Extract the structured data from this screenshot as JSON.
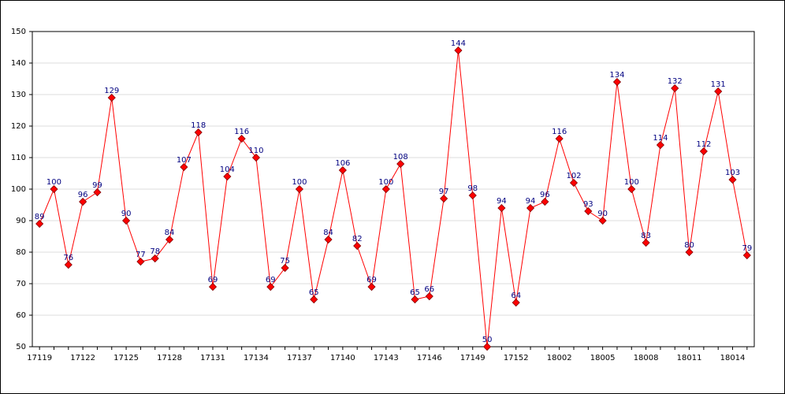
{
  "chart_data": {
    "type": "line",
    "categories": [
      "17119",
      null,
      null,
      "17122",
      null,
      null,
      "17125",
      null,
      null,
      "17128",
      null,
      null,
      "17131",
      null,
      null,
      "17134",
      null,
      null,
      "17137",
      null,
      null,
      "17140",
      null,
      null,
      "17143",
      null,
      null,
      "17146",
      null,
      null,
      "17149",
      null,
      null,
      "17152",
      null,
      null,
      "18002",
      null,
      null,
      "18005",
      null,
      null,
      "18008",
      null,
      null,
      "18011",
      null,
      null,
      "18014",
      null
    ],
    "values": [
      89,
      100,
      76,
      96,
      99,
      129,
      90,
      77,
      78,
      84,
      107,
      118,
      69,
      104,
      116,
      110,
      69,
      75,
      100,
      65,
      84,
      106,
      82,
      69,
      100,
      108,
      65,
      66,
      97,
      144,
      98,
      50,
      94,
      64,
      94,
      96,
      116,
      102,
      93,
      90,
      134,
      100,
      83,
      114,
      132,
      80,
      112,
      131,
      103,
      79
    ],
    "color": "#ff0000",
    "ylim": [
      50,
      150
    ],
    "yticks": [
      50,
      60,
      70,
      80,
      90,
      100,
      110,
      120,
      130,
      140,
      150
    ],
    "grid": true
  }
}
